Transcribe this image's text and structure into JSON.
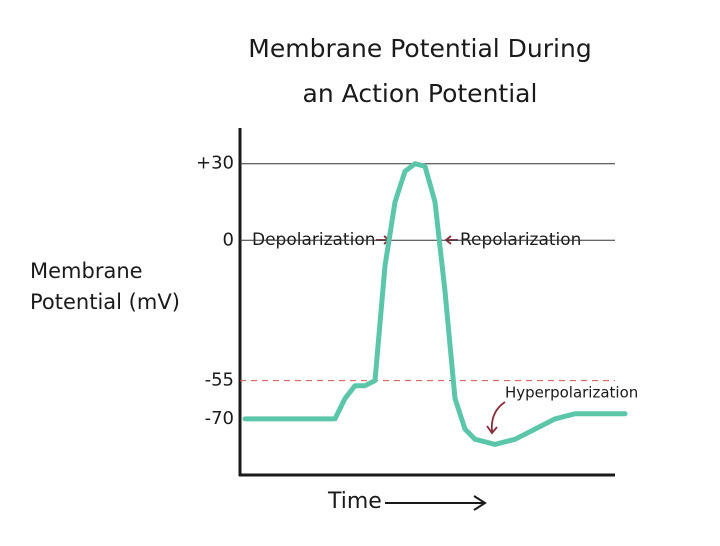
{
  "chart_data": {
    "type": "line",
    "title": [
      "Membrane Potential During",
      "an Action Potential"
    ],
    "y_label": [
      "Membrane",
      "Potential (mV)"
    ],
    "x_label": "Time",
    "categories": [
      null,
      null,
      null,
      null,
      null,
      null,
      null,
      null,
      null,
      null,
      null,
      null,
      null,
      null,
      null,
      null,
      null,
      null,
      null,
      null,
      null,
      null,
      null,
      null,
      null,
      null,
      null,
      null,
      null,
      null,
      null,
      null,
      null,
      null,
      null,
      null,
      null,
      null,
      null
    ],
    "values": [
      -70,
      -70,
      -70,
      -70,
      -70,
      -70,
      -70,
      -70,
      -70,
      -70,
      -62,
      -57,
      -57,
      -55,
      -10,
      15,
      27,
      30,
      29,
      15,
      -20,
      -62,
      -74,
      -78,
      -79,
      -80,
      -79,
      -78,
      -76,
      -74,
      -72,
      -70,
      -69,
      -68,
      -68,
      -68,
      -68,
      -68,
      -68
    ],
    "color": "#5cc6ab",
    "ylim": [
      -92,
      44
    ],
    "yticks": [
      {
        "value": 30,
        "label": "+30"
      },
      0,
      -55,
      -70
    ],
    "grid_styles": [
      "solid",
      "solid",
      "dashed",
      "none"
    ],
    "annotations": [
      {
        "text": "Depolarization",
        "color": "#8b2a3a"
      },
      {
        "text": "Repolarization",
        "color": "#8b2a3a"
      },
      {
        "text": "Hyperpolarization",
        "color": "#8b2a3a"
      }
    ]
  }
}
